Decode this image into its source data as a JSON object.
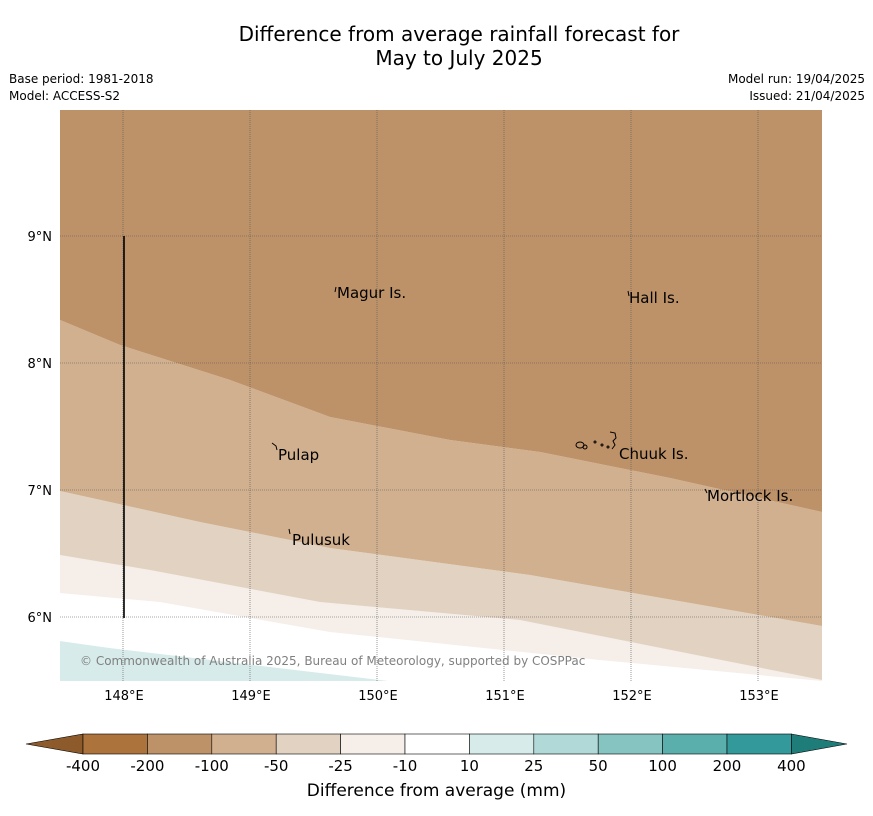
{
  "title_line1": "Difference from average rainfall forecast for",
  "title_line2": "May to July 2025",
  "info_left": [
    "Base period: 1981-2018",
    "Model: ACCESS-S2"
  ],
  "info_right": [
    "Model run: 19/04/2025",
    "Issued: 21/04/2025"
  ],
  "map": {
    "lat_ticks": [
      "9°N",
      "8°N",
      "7°N",
      "6°N"
    ],
    "lon_ticks": [
      "148°E",
      "149°E",
      "150°E",
      "151°E",
      "152°E",
      "153°E"
    ],
    "places": [
      "Magur Is.",
      "Hall Is.",
      "Pulap",
      "Chuuk Is.",
      "Mortlock Is.",
      "Pulusuk"
    ],
    "copyright": "© Commonwealth of Australia 2025, Bureau of Meteorology, supported by COSPPac"
  },
  "colorbar": {
    "ticks": [
      "-400",
      "-200",
      "-100",
      "-50",
      "-25",
      "-10",
      "10",
      "25",
      "50",
      "100",
      "200",
      "400"
    ],
    "colors": [
      "#8c5a2b",
      "#ac733c",
      "#be9269",
      "#d1b08f",
      "#e2d2c1",
      "#f5eee9",
      "#ffffff",
      "#d6ebea",
      "#b0d9d7",
      "#86c4c1",
      "#5aafac",
      "#33999a",
      "#1e7c79"
    ],
    "label": "Difference from average (mm)"
  }
}
